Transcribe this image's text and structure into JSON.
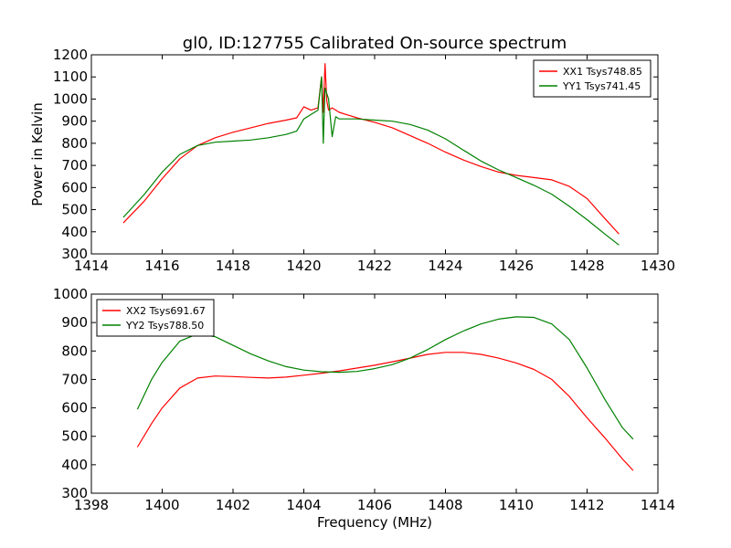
{
  "figure": {
    "title": "gl0, ID:127755 Calibrated On-source spectrum",
    "xlabel": "Frequency (MHz)",
    "ylabel": "Power in Kelvin"
  },
  "chart_data": [
    {
      "type": "line",
      "title": "gl0, ID:127755 Calibrated On-source spectrum",
      "xlabel": "",
      "ylabel": "Power in Kelvin",
      "xlim": [
        1414,
        1430
      ],
      "ylim": [
        300,
        1200
      ],
      "xticks": [
        1414,
        1416,
        1418,
        1420,
        1422,
        1424,
        1426,
        1428,
        1430
      ],
      "yticks": [
        300,
        400,
        500,
        600,
        700,
        800,
        900,
        1000,
        1100,
        1200
      ],
      "grid": false,
      "legend": "top-right",
      "series": [
        {
          "name": "XX1 Tsys748.85",
          "color": "#ff0000",
          "x": [
            1414.9,
            1415.5,
            1416,
            1416.5,
            1417,
            1417.5,
            1418,
            1418.5,
            1419,
            1419.5,
            1419.8,
            1420.0,
            1420.2,
            1420.4,
            1420.5,
            1420.55,
            1420.6,
            1420.65,
            1420.7,
            1420.8,
            1421.0,
            1421.5,
            1422,
            1422.5,
            1423,
            1423.5,
            1424,
            1424.5,
            1425,
            1425.5,
            1426,
            1426.5,
            1427,
            1427.5,
            1428,
            1428.5,
            1428.9
          ],
          "y": [
            440,
            540,
            640,
            730,
            790,
            825,
            850,
            870,
            890,
            905,
            915,
            965,
            950,
            960,
            1100,
            940,
            1160,
            990,
            950,
            960,
            940,
            915,
            895,
            870,
            835,
            800,
            760,
            725,
            695,
            670,
            655,
            645,
            635,
            605,
            550,
            460,
            390
          ]
        },
        {
          "name": "YY1 Tsys741.45",
          "color": "#008000",
          "x": [
            1414.9,
            1415.5,
            1416,
            1416.5,
            1417,
            1417.5,
            1418,
            1418.5,
            1419,
            1419.5,
            1419.8,
            1420.0,
            1420.2,
            1420.4,
            1420.5,
            1420.55,
            1420.6,
            1420.7,
            1420.8,
            1420.9,
            1421.0,
            1421.5,
            1422,
            1422.5,
            1423,
            1423.5,
            1424,
            1424.5,
            1425,
            1425.5,
            1426,
            1426.5,
            1427,
            1427.5,
            1428,
            1428.5,
            1428.9
          ],
          "y": [
            465,
            570,
            670,
            750,
            790,
            805,
            810,
            815,
            825,
            840,
            855,
            910,
            930,
            950,
            1100,
            800,
            1050,
            1000,
            830,
            920,
            910,
            910,
            905,
            900,
            885,
            860,
            820,
            770,
            720,
            680,
            645,
            610,
            570,
            515,
            455,
            390,
            340
          ]
        }
      ]
    },
    {
      "type": "line",
      "title": "",
      "xlabel": "Frequency (MHz)",
      "ylabel": "",
      "xlim": [
        1398,
        1414
      ],
      "ylim": [
        300,
        1000
      ],
      "xticks": [
        1398,
        1400,
        1402,
        1404,
        1406,
        1408,
        1410,
        1412,
        1414
      ],
      "yticks": [
        300,
        400,
        500,
        600,
        700,
        800,
        900,
        1000
      ],
      "grid": false,
      "legend": "top-left",
      "series": [
        {
          "name": "XX2 Tsys691.67",
          "color": "#ff0000",
          "x": [
            1399.3,
            1399.7,
            1400,
            1400.5,
            1401,
            1401.5,
            1402,
            1402.5,
            1403,
            1403.5,
            1404,
            1404.5,
            1405,
            1405.5,
            1406,
            1406.5,
            1407,
            1407.5,
            1408,
            1408.5,
            1409,
            1409.5,
            1410,
            1410.5,
            1411,
            1411.5,
            1412,
            1412.5,
            1413,
            1413.3
          ],
          "y": [
            462,
            545,
            600,
            670,
            705,
            712,
            710,
            707,
            705,
            708,
            715,
            722,
            730,
            740,
            750,
            762,
            775,
            788,
            795,
            795,
            788,
            775,
            758,
            735,
            700,
            640,
            565,
            495,
            420,
            380
          ]
        },
        {
          "name": "YY2 Tsys788.50",
          "color": "#008000",
          "x": [
            1399.3,
            1399.7,
            1400,
            1400.5,
            1401,
            1401.5,
            1402,
            1402.5,
            1403,
            1403.5,
            1404,
            1404.5,
            1405,
            1405.5,
            1406,
            1406.5,
            1407,
            1407.5,
            1408,
            1408.5,
            1409,
            1409.5,
            1410,
            1410.5,
            1411,
            1411.5,
            1412,
            1412.5,
            1413,
            1413.3
          ],
          "y": [
            595,
            700,
            760,
            835,
            860,
            850,
            820,
            790,
            765,
            745,
            733,
            727,
            725,
            728,
            738,
            752,
            775,
            805,
            840,
            870,
            895,
            912,
            920,
            918,
            895,
            840,
            740,
            630,
            530,
            490
          ]
        }
      ]
    }
  ]
}
